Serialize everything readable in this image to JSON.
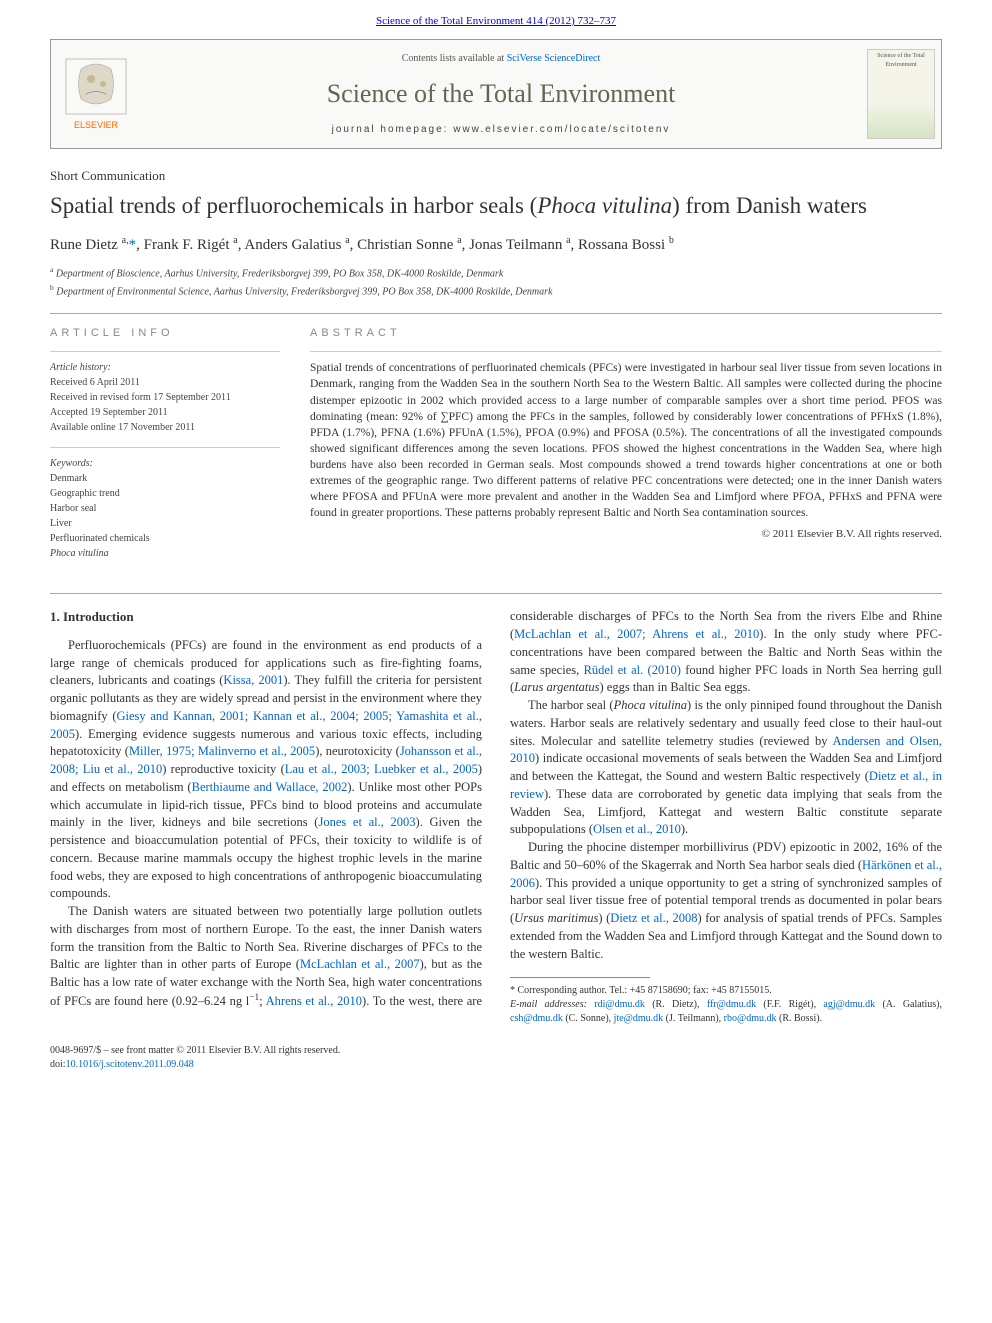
{
  "header": {
    "citation": "Science of the Total Environment 414 (2012) 732–737",
    "contents_prefix": "Contents lists available at ",
    "contents_link": "SciVerse ScienceDirect",
    "journal_name": "Science of the Total Environment",
    "homepage_prefix": "journal homepage: ",
    "homepage": "www.elsevier.com/locate/scitotenv",
    "cover_label": "Science of the Total Environment",
    "elsevier_label": "ELSEVIER"
  },
  "article": {
    "type": "Short Communication",
    "title_pre": "Spatial trends of perfluorochemicals in harbor seals (",
    "title_italic": "Phoca vitulina",
    "title_post": ") from Danish waters"
  },
  "authors_html": "Rune Dietz <sup>a,</sup><a href=\"#\">*</a>, Frank F. Rigét <sup>a</sup>, Anders Galatius <sup>a</sup>, Christian Sonne <sup>a</sup>, Jonas Teilmann <sup>a</sup>, Rossana Bossi <sup>b</sup>",
  "affiliations": {
    "a": "Department of Bioscience, Aarhus University, Frederiksborgvej 399, PO Box 358, DK-4000 Roskilde, Denmark",
    "b": "Department of Environmental Science, Aarhus University, Frederiksborgvej 399, PO Box 358, DK-4000 Roskilde, Denmark"
  },
  "info": {
    "heading": "ARTICLE INFO",
    "history_label": "Article history:",
    "received": "Received 6 April 2011",
    "revised": "Received in revised form 17 September 2011",
    "accepted": "Accepted 19 September 2011",
    "online": "Available online 17 November 2011",
    "keywords_label": "Keywords:",
    "keywords": [
      "Denmark",
      "Geographic trend",
      "Harbor seal",
      "Liver",
      "Perfluorinated chemicals"
    ],
    "keywords_italic": "Phoca vitulina"
  },
  "abstract": {
    "heading": "ABSTRACT",
    "text": "Spatial trends of concentrations of perfluorinated chemicals (PFCs) were investigated in harbour seal liver tissue from seven locations in Denmark, ranging from the Wadden Sea in the southern North Sea to the Western Baltic. All samples were collected during the phocine distemper epizootic in 2002 which provided access to a large number of comparable samples over a short time period. PFOS was dominating (mean: 92% of ∑PFC) among the PFCs in the samples, followed by considerably lower concentrations of PFHxS (1.8%), PFDA (1.7%), PFNA (1.6%) PFUnA (1.5%), PFOA (0.9%) and PFOSA (0.5%). The concentrations of all the investigated compounds showed significant differences among the seven locations. PFOS showed the highest concentrations in the Wadden Sea, where high burdens have also been recorded in German seals. Most compounds showed a trend towards higher concentrations at one or both extremes of the geographic range. Two different patterns of relative PFC concentrations were detected; one in the inner Danish waters where PFOSA and PFUnA were more prevalent and another in the Wadden Sea and Limfjord where PFOA, PFHxS and PFNA were found in greater proportions. These patterns probably represent Baltic and North Sea contamination sources.",
    "copyright": "© 2011 Elsevier B.V. All rights reserved."
  },
  "body": {
    "section_heading": "1. Introduction",
    "p1": "Perfluorochemicals (PFCs) are found in the environment as end products of a large range of chemicals produced for applications such as fire-fighting foams, cleaners, lubricants and coatings (<a href=\"#\">Kissa, 2001</a>). They fulfill the criteria for persistent organic pollutants as they are widely spread and persist in the environment where they biomagnify (<a href=\"#\">Giesy and Kannan, 2001; Kannan et al., 2004; 2005; Yamashita et al., 2005</a>). Emerging evidence suggests numerous and various toxic effects, including hepatotoxicity (<a href=\"#\">Miller, 1975; Malinverno et al., 2005</a>), neurotoxicity (<a href=\"#\">Johansson et al., 2008; Liu et al., 2010</a>) reproductive toxicity (<a href=\"#\">Lau et al., 2003; Luebker et al., 2005</a>) and effects on metabolism (<a href=\"#\">Berthiaume and Wallace, 2002</a>). Unlike most other POPs which accumulate in lipid-rich tissue, PFCs bind to blood proteins and accumulate mainly in the liver, kidneys and bile secretions (<a href=\"#\">Jones et al., 2003</a>). Given the persistence and bioaccumulation potential of PFCs, their toxicity to wildlife is of concern. Because marine mammals occupy the highest trophic levels in the marine food webs, they are exposed to high concentrations of anthropogenic bioaccumulating compounds.",
    "p2": "The Danish waters are situated between two potentially large pollution outlets with discharges from most of northern Europe. To the east, the inner Danish waters form the transition from the Baltic to North Sea. Riverine discharges of PFCs to the Baltic are lighter than in other parts of Europe (<a href=\"#\">McLachlan et al., 2007</a>), but as the Baltic has a low rate of water exchange with the North Sea, high water concentrations of PFCs are found here (0.92–6.24 ng l<sup>−1</sup>; <a href=\"#\">Ahrens et al., 2010</a>). To the west, there are considerable discharges of PFCs to the North Sea from the rivers Elbe and Rhine (<a href=\"#\">McLachlan et al., 2007; Ahrens et al., 2010</a>). In the only study where PFC-concentrations have been compared between the Baltic and North Seas within the same species, <a href=\"#\">Rüdel et al. (2010)</a> found higher PFC loads in North Sea herring gull (<span class=\"italic\">Larus argentatus</span>) eggs than in Baltic Sea eggs.",
    "p3": "The harbor seal (<span class=\"italic\">Phoca vitulina</span>) is the only pinniped found throughout the Danish waters. Harbor seals are relatively sedentary and usually feed close to their haul-out sites. Molecular and satellite telemetry studies (reviewed by <a href=\"#\">Andersen and Olsen, 2010</a>) indicate occasional movements of seals between the Wadden Sea and Limfjord and between the Kattegat, the Sound and western Baltic respectively (<a href=\"#\">Dietz et al., in review</a>). These data are corroborated by genetic data implying that seals from the Wadden Sea, Limfjord, Kattegat and western Baltic constitute separate subpopulations (<a href=\"#\">Olsen et al., 2010</a>).",
    "p4": "During the phocine distemper morbillivirus (PDV) epizootic in 2002, 16% of the Baltic and 50–60% of the Skagerrak and North Sea harbor seals died (<a href=\"#\">Härkönen et al., 2006</a>). This provided a unique opportunity to get a string of synchronized samples of harbor seal liver tissue free of potential temporal trends as documented in polar bears (<span class=\"italic\">Ursus maritimus</span>) (<a href=\"#\">Dietz et al., 2008</a>) for analysis of spatial trends of PFCs. Samples extended from the Wadden Sea and Limfjord through Kattegat and the Sound down to the western Baltic."
  },
  "footnote": {
    "corr": "* Corresponding author. Tel.: +45 87158690; fax: +45 87155015.",
    "emails_label": "E-mail addresses:",
    "emails_html": " <a href=\"#\">rdi@dmu.dk</a> (R. Dietz), <a href=\"#\">ffr@dmu.dk</a> (F.F. Rigét), <a href=\"#\">agj@dmu.dk</a> (A. Galatius), <a href=\"#\">csh@dmu.dk</a> (C. Sonne), <a href=\"#\">jte@dmu.dk</a> (J. Teilmann), <a href=\"#\">rbo@dmu.dk</a> (R. Bossi)."
  },
  "bottom": {
    "front_matter": "0048-9697/$ – see front matter © 2011 Elsevier B.V. All rights reserved.",
    "doi_prefix": "doi:",
    "doi": "10.1016/j.scitotenv.2011.09.048"
  },
  "colors": {
    "link": "#0066cc",
    "text": "#333333",
    "journal": "#656553",
    "elsevier_orange": "#ff6600"
  }
}
